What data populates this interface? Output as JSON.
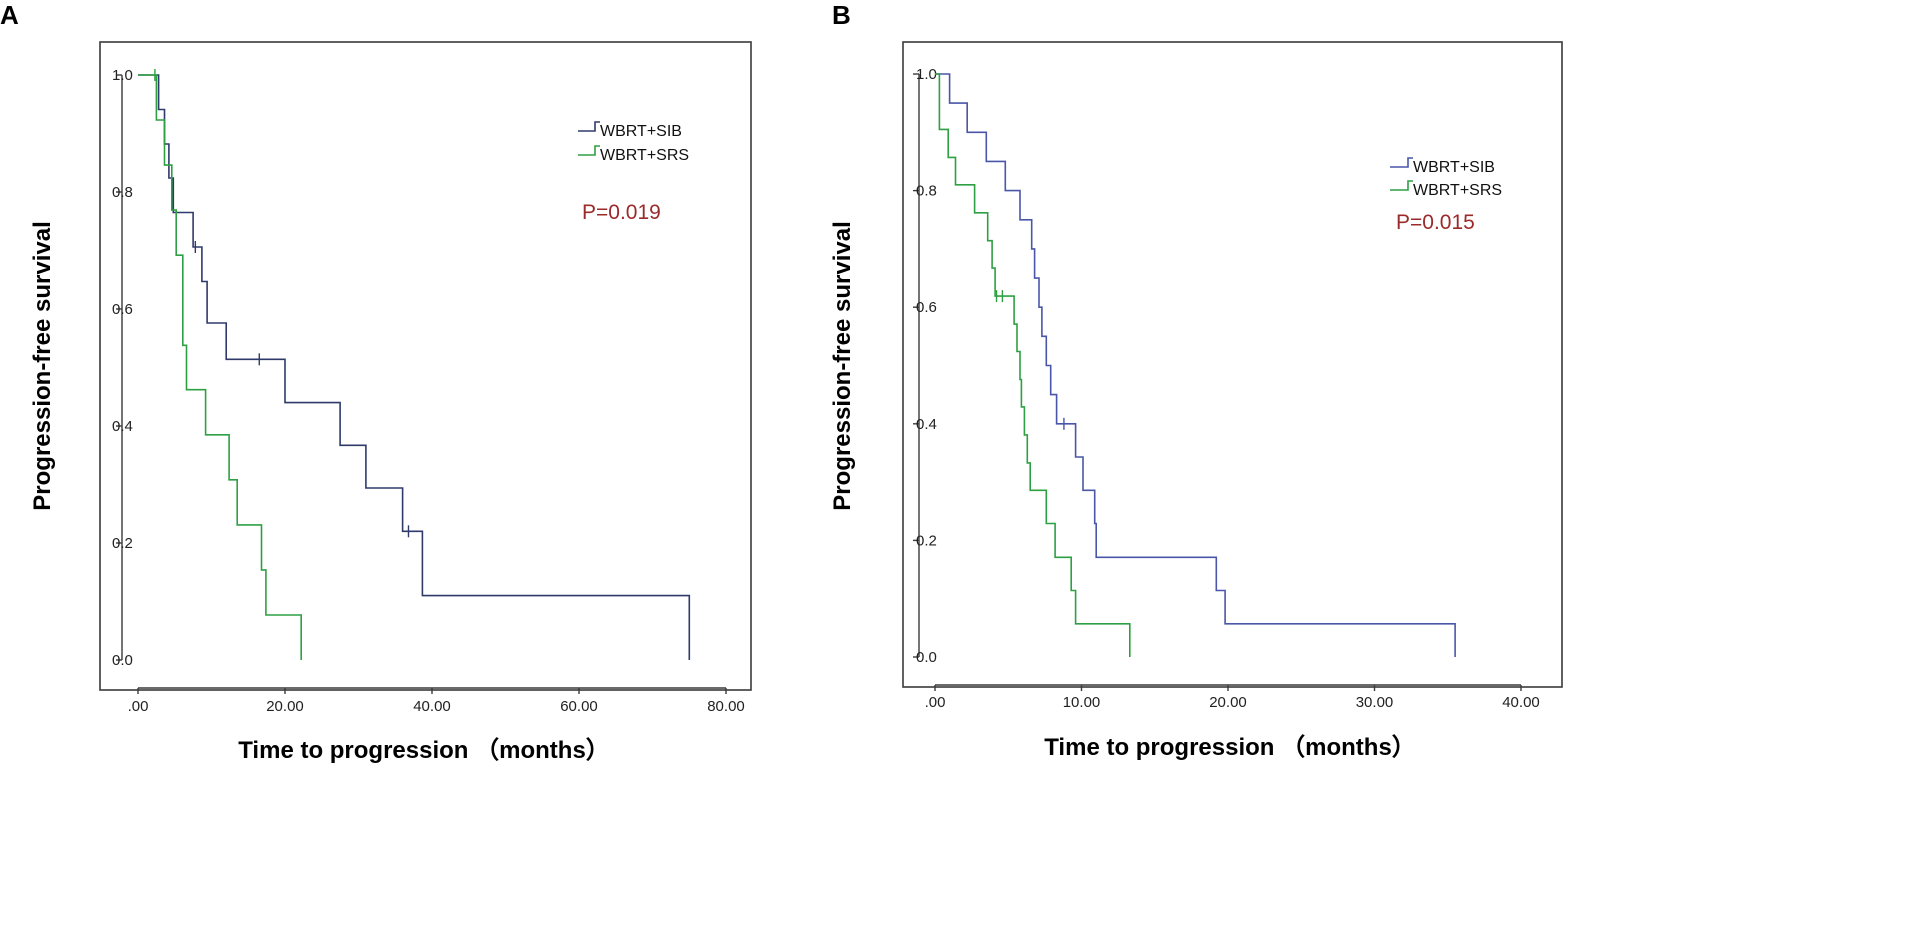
{
  "chart_data": [
    {
      "type": "line",
      "panel_label": "A",
      "xlabel": "Time to progression （months）",
      "ylabel": "Progression-free survival",
      "xlim": [
        0,
        80
      ],
      "ylim": [
        0,
        1.0
      ],
      "x_ticks": [
        ".00",
        "20.00",
        "40.00",
        "60.00",
        "80.00"
      ],
      "x_tick_values": [
        0,
        20,
        40,
        60,
        80
      ],
      "y_ticks": [
        "0.0",
        "0.2",
        "0.4",
        "0.6",
        "0.8",
        "1.0"
      ],
      "y_tick_values": [
        0,
        0.2,
        0.4,
        0.6,
        0.8,
        1.0
      ],
      "p_value": "P=0.019",
      "legend_position": "top-right",
      "series": [
        {
          "name": "WBRT+SIB",
          "color": "#2f3a6b",
          "steps": [
            [
              0,
              1.0
            ],
            [
              2.8,
              0.941
            ],
            [
              3.6,
              0.882
            ],
            [
              4.2,
              0.824
            ],
            [
              4.8,
              0.765
            ],
            [
              7.5,
              0.706
            ],
            [
              8.7,
              0.647
            ],
            [
              9.4,
              0.576
            ],
            [
              12.0,
              0.514
            ],
            [
              20.0,
              0.44
            ],
            [
              27.5,
              0.367
            ],
            [
              31.0,
              0.294
            ],
            [
              36.0,
              0.22
            ],
            [
              38.7,
              0.11
            ],
            [
              75.0,
              0.0
            ]
          ],
          "end_x": 75.0,
          "censors": [
            [
              7.8,
              0.706
            ],
            [
              16.5,
              0.514
            ],
            [
              36.8,
              0.22
            ]
          ]
        },
        {
          "name": "WBRT+SRS",
          "color": "#2ea043",
          "steps": [
            [
              0,
              1.0
            ],
            [
              2.5,
              0.923
            ],
            [
              3.6,
              0.846
            ],
            [
              4.6,
              0.769
            ],
            [
              5.2,
              0.692
            ],
            [
              6.1,
              0.538
            ],
            [
              6.6,
              0.462
            ],
            [
              9.2,
              0.385
            ],
            [
              12.4,
              0.308
            ],
            [
              13.5,
              0.231
            ],
            [
              16.8,
              0.154
            ],
            [
              17.4,
              0.077
            ],
            [
              22.2,
              0.0
            ]
          ],
          "end_x": 22.2,
          "censors": [
            [
              2.3,
              1.0
            ]
          ]
        }
      ]
    },
    {
      "type": "line",
      "panel_label": "B",
      "xlabel": "Time to progression （months）",
      "ylabel": "Progression-free survival",
      "xlim": [
        0,
        40
      ],
      "ylim": [
        0,
        1.0
      ],
      "x_ticks": [
        ".00",
        "10.00",
        "20.00",
        "30.00",
        "40.00"
      ],
      "x_tick_values": [
        0,
        10,
        20,
        30,
        40
      ],
      "y_ticks": [
        "0.0",
        "0.2",
        "0.4",
        "0.6",
        "0.8",
        "1.0"
      ],
      "y_tick_values": [
        0,
        0.2,
        0.4,
        0.6,
        0.8,
        1.0
      ],
      "p_value": "P=0.015",
      "legend_position": "top-right",
      "series": [
        {
          "name": "WBRT+SIB",
          "color": "#4a56a8",
          "steps": [
            [
              0,
              1.0
            ],
            [
              1.0,
              0.95
            ],
            [
              2.2,
              0.9
            ],
            [
              3.5,
              0.85
            ],
            [
              4.8,
              0.8
            ],
            [
              5.8,
              0.75
            ],
            [
              6.6,
              0.7
            ],
            [
              6.8,
              0.65
            ],
            [
              7.1,
              0.6
            ],
            [
              7.3,
              0.55
            ],
            [
              7.6,
              0.5
            ],
            [
              7.9,
              0.45
            ],
            [
              8.3,
              0.4
            ],
            [
              9.6,
              0.343
            ],
            [
              10.1,
              0.286
            ],
            [
              10.9,
              0.229
            ],
            [
              11.0,
              0.171
            ],
            [
              19.2,
              0.114
            ],
            [
              19.8,
              0.057
            ],
            [
              35.5,
              0.0
            ]
          ],
          "end_x": 35.5,
          "censors": [
            [
              8.8,
              0.4
            ]
          ]
        },
        {
          "name": "WBRT+SRS",
          "color": "#2ea043",
          "steps": [
            [
              0,
              1.0
            ],
            [
              0.3,
              0.905
            ],
            [
              0.9,
              0.857
            ],
            [
              1.4,
              0.81
            ],
            [
              2.7,
              0.762
            ],
            [
              3.6,
              0.714
            ],
            [
              3.9,
              0.667
            ],
            [
              4.1,
              0.619
            ],
            [
              5.4,
              0.571
            ],
            [
              5.6,
              0.524
            ],
            [
              5.8,
              0.476
            ],
            [
              5.9,
              0.429
            ],
            [
              6.1,
              0.381
            ],
            [
              6.3,
              0.333
            ],
            [
              6.5,
              0.286
            ],
            [
              7.6,
              0.229
            ],
            [
              8.2,
              0.171
            ],
            [
              9.3,
              0.114
            ],
            [
              9.6,
              0.057
            ],
            [
              13.3,
              0.0
            ]
          ],
          "end_x": 13.3,
          "censors": [
            [
              4.2,
              0.619
            ],
            [
              4.6,
              0.619
            ]
          ]
        }
      ]
    }
  ]
}
